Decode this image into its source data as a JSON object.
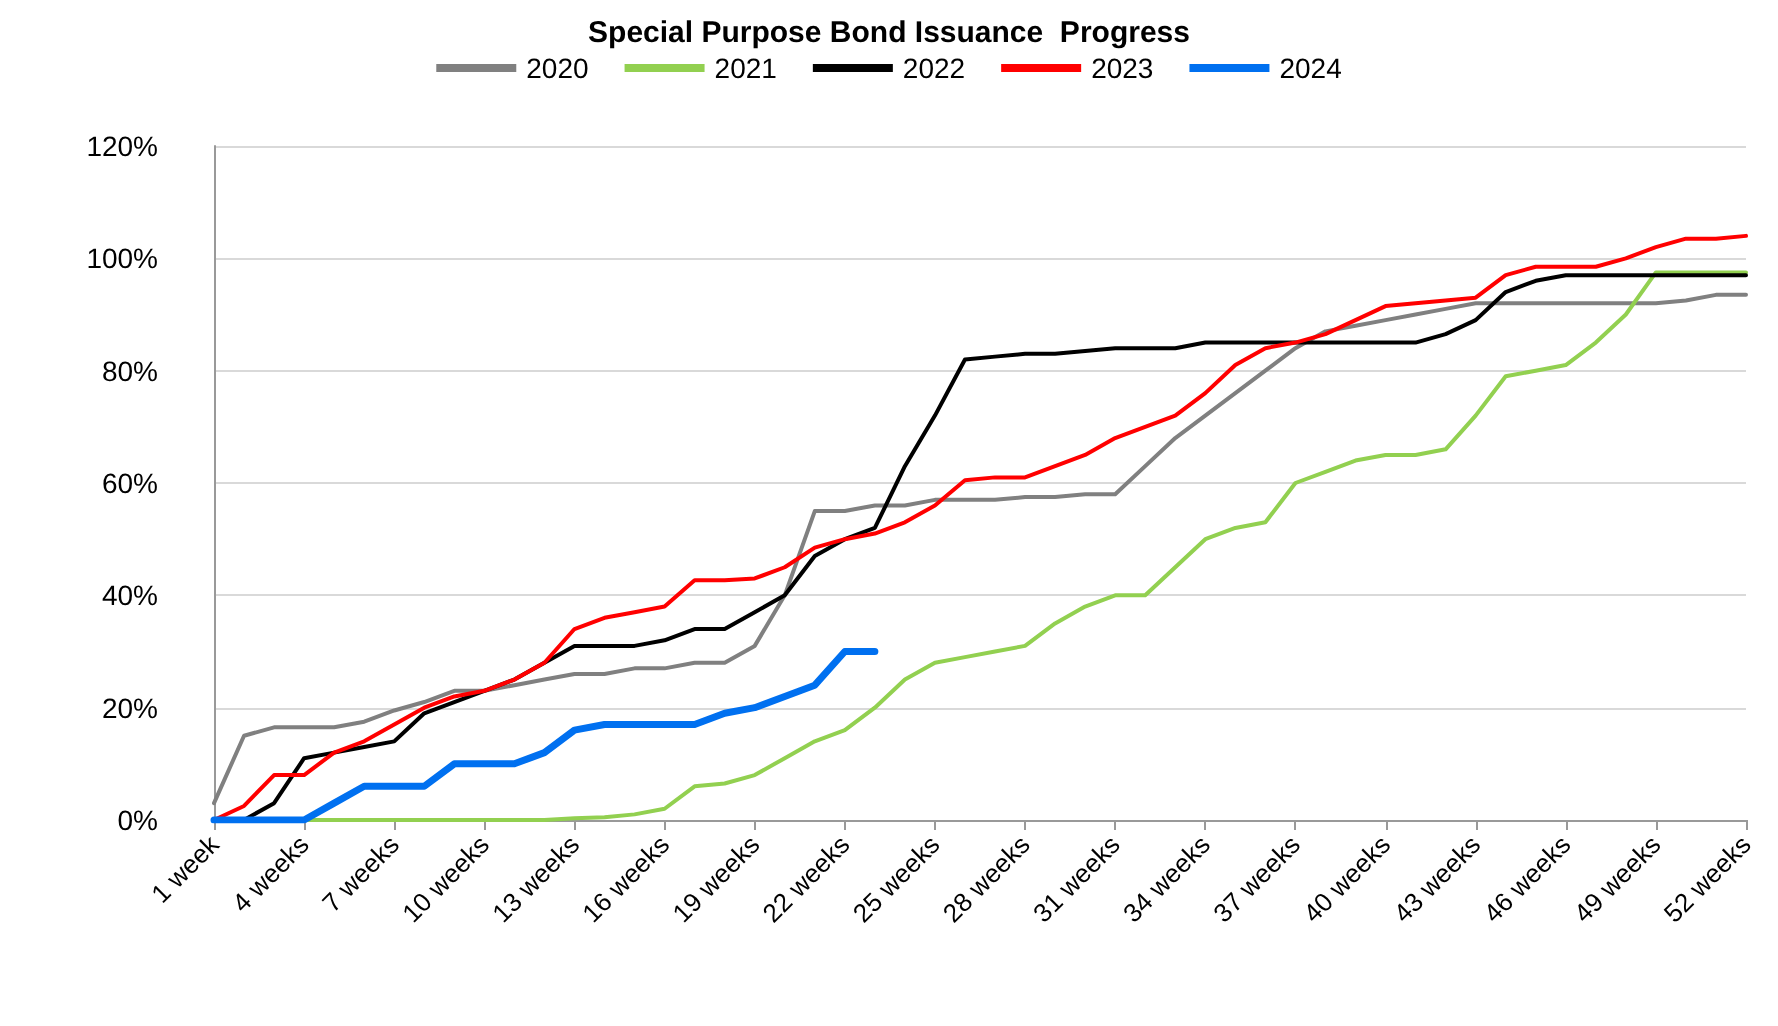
{
  "chart_data": {
    "type": "line",
    "title": "Special Purpose Bond Issuance  Progress",
    "categories": [
      "1 week",
      null,
      null,
      "4 weeks",
      null,
      null,
      "7 weeks",
      null,
      null,
      "10 weeks",
      null,
      null,
      "13 weeks",
      null,
      null,
      "16 weeks",
      null,
      null,
      "19 weeks",
      null,
      null,
      "22 weeks",
      null,
      null,
      "25 weeks",
      null,
      null,
      "28 weeks",
      null,
      null,
      "31 weeks",
      null,
      null,
      "34 weeks",
      null,
      null,
      "37 weeks",
      null,
      null,
      "40 weeks",
      null,
      null,
      "43 weeks",
      null,
      null,
      "46 weeks",
      null,
      null,
      "49 weeks",
      null,
      null,
      "52 weeks"
    ],
    "series": [
      {
        "name": "2020",
        "color": "#808080",
        "values": [
          3,
          15,
          16.5,
          16.5,
          16.5,
          17.5,
          19.5,
          21,
          23,
          23,
          24,
          25,
          26,
          26,
          27,
          27,
          28,
          28,
          31,
          40,
          55,
          55,
          56,
          56,
          57,
          57,
          57,
          57.5,
          57.5,
          58,
          58,
          63,
          68,
          72,
          76,
          80,
          84,
          87,
          88,
          89,
          90,
          91,
          92,
          92,
          92,
          92,
          92,
          92,
          92,
          92.5,
          93.5,
          93.5
        ]
      },
      {
        "name": "2021",
        "color": "#92d050",
        "values": [
          null,
          null,
          null,
          0,
          0,
          0,
          0,
          0,
          0,
          0,
          0,
          0,
          0.3,
          0.5,
          1,
          2,
          6,
          6.5,
          8,
          11,
          14,
          16,
          20,
          25,
          28,
          29,
          30,
          31,
          35,
          38,
          40,
          40,
          45,
          50,
          52,
          53,
          60,
          62,
          64,
          65,
          65,
          66,
          72,
          79,
          80,
          81,
          85,
          90,
          97.5,
          97.5,
          97.5,
          97.5
        ]
      },
      {
        "name": "2022",
        "color": "#000000",
        "values": [
          0,
          0,
          3,
          11,
          12,
          13,
          14,
          19,
          21,
          23,
          25,
          28,
          31,
          31,
          31,
          32,
          34,
          34,
          37,
          40,
          47,
          50,
          52,
          63,
          72,
          82,
          82.5,
          83,
          83,
          83.5,
          84,
          84,
          84,
          85,
          85,
          85,
          85,
          85,
          85,
          85,
          85,
          86.5,
          89,
          94,
          96,
          97,
          97,
          97,
          97,
          97,
          97,
          97
        ]
      },
      {
        "name": "2023",
        "color": "#ff0000",
        "values": [
          0,
          2.5,
          8,
          8,
          12,
          14,
          17,
          20,
          22,
          23,
          25,
          28,
          34,
          36,
          37,
          38,
          42.7,
          42.7,
          43,
          45,
          48.5,
          50,
          51,
          53,
          56,
          60.5,
          61,
          61,
          63,
          65,
          68,
          70,
          72,
          76,
          81,
          84,
          85,
          86.5,
          89,
          91.5,
          92,
          92.5,
          93,
          97,
          98.5,
          98.5,
          98.5,
          100,
          102,
          103.5,
          103.5,
          104
        ]
      },
      {
        "name": "2024",
        "color": "#0070f0",
        "values": [
          0,
          0,
          0,
          0,
          3,
          6,
          6,
          6,
          10,
          10,
          10,
          12,
          16,
          17,
          17,
          17,
          17,
          19,
          20,
          22,
          24,
          30,
          30,
          null,
          null,
          null,
          null,
          null,
          null,
          null,
          null,
          null,
          null,
          null,
          null,
          null,
          null,
          null,
          null,
          null,
          null,
          null,
          null,
          null,
          null,
          null,
          null,
          null,
          null,
          null,
          null,
          null
        ]
      }
    ],
    "ylim": [
      0,
      120
    ],
    "yticks": [
      {
        "value": 0,
        "label": "0%"
      },
      {
        "value": 20,
        "label": "20%"
      },
      {
        "value": 40,
        "label": "40%"
      },
      {
        "value": 60,
        "label": "60%"
      },
      {
        "value": 80,
        "label": "80%"
      },
      {
        "value": 100,
        "label": "100%"
      },
      {
        "value": 120,
        "label": "120%"
      }
    ],
    "grid": "y",
    "legend": "top",
    "marker": "none",
    "line_style": "solid"
  }
}
